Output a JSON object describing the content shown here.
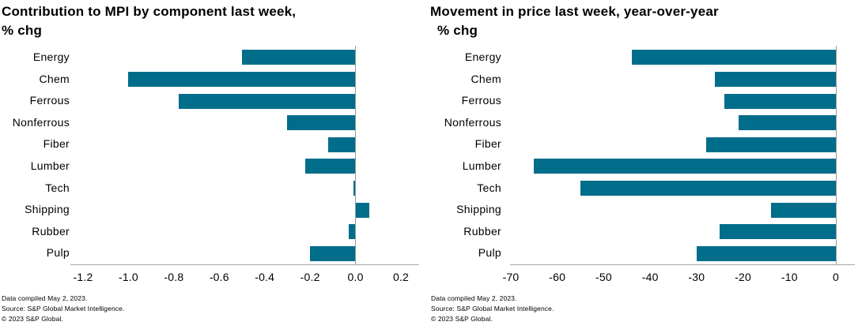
{
  "chart_data": [
    {
      "type": "bar",
      "orientation": "horizontal",
      "title": "Contribution to MPI by component last week, % chg",
      "title_line1": "Contribution to MPI by component last week,",
      "title_line2": "% chg",
      "categories": [
        "Energy",
        "Chem",
        "Ferrous",
        "Nonferrous",
        "Fiber",
        "Lumber",
        "Tech",
        "Shipping",
        "Rubber",
        "Pulp"
      ],
      "values": [
        -0.5,
        -1.0,
        -0.78,
        -0.3,
        -0.12,
        -0.22,
        -0.01,
        0.06,
        -0.03,
        -0.2
      ],
      "xlim": [
        -1.2,
        0.2
      ],
      "xmin": -1.2,
      "xmax": 0.2,
      "tick_values": [
        -1.2,
        -1.0,
        -0.8,
        -0.6,
        -0.4,
        -0.2,
        0.0,
        0.2
      ],
      "tick_labels": [
        "-1.2",
        "-1.0",
        "-0.8",
        "-0.6",
        "-0.4",
        "-0.2",
        "0.0",
        "0.2"
      ],
      "grid": false,
      "legend": "none",
      "bar_color": "#006d8a",
      "axis_color": "#a6a6a6",
      "footer": [
        "Data compiled May 2, 2023.",
        "Source: S&P Global Market Intelligence.",
        "© 2023  S&P Global."
      ]
    },
    {
      "type": "bar",
      "orientation": "horizontal",
      "title": "Movement in price last week, year-over-year % chg",
      "title_line1": "Movement in price last week, year-over-year",
      "title_line2": "% chg",
      "categories": [
        "Energy",
        "Chem",
        "Ferrous",
        "Nonferrous",
        "Fiber",
        "Lumber",
        "Tech",
        "Shipping",
        "Rubber",
        "Pulp"
      ],
      "values": [
        -44,
        -26,
        -24,
        -21,
        -28,
        -65,
        -55,
        -14,
        -25,
        -30
      ],
      "xlim": [
        -70,
        0
      ],
      "xmin": -70,
      "xmax": 0,
      "tick_values": [
        -70,
        -60,
        -50,
        -40,
        -30,
        -20,
        -10,
        0
      ],
      "tick_labels": [
        "-70",
        "-60",
        "-50",
        "-40",
        "-30",
        "-20",
        "-10",
        "0"
      ],
      "grid": false,
      "legend": "none",
      "bar_color": "#006d8a",
      "axis_color": "#a6a6a6",
      "footer": [
        "Data compiled May 2, 2023.",
        "Source: S&P Global Market Intelligence.",
        "© 2023  S&P Global."
      ]
    }
  ]
}
